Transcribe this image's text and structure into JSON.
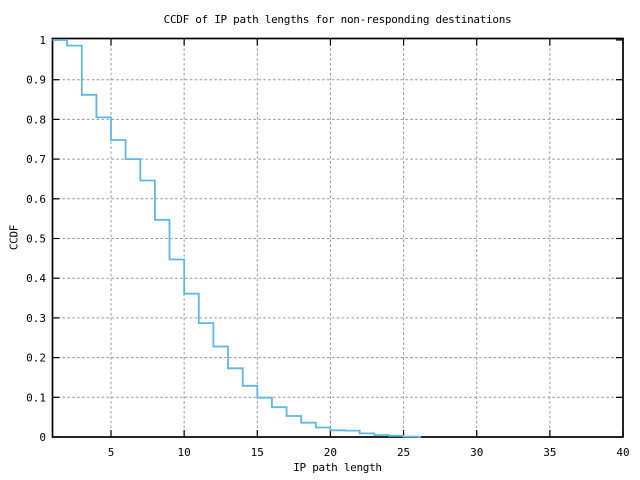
{
  "title": "CCDF of IP path lengths for non-responding destinations",
  "colors": {
    "line": "#5db8e6",
    "grid": "#9a9a9a",
    "axis": "#000000",
    "background": "#ffffff"
  },
  "chart_data": {
    "type": "line",
    "subtype": "step-staircase-ccdf",
    "title": "CCDF of IP path lengths for non-responding destinations",
    "xlabel": "IP path length",
    "ylabel": "CCDF",
    "xlim": [
      1,
      40
    ],
    "ylim": [
      0,
      1
    ],
    "grid": true,
    "legend": false,
    "xticks": [
      {
        "v": 5,
        "label": "5"
      },
      {
        "v": 10,
        "label": "10"
      },
      {
        "v": 15,
        "label": "15"
      },
      {
        "v": 20,
        "label": "20"
      },
      {
        "v": 25,
        "label": "25"
      },
      {
        "v": 30,
        "label": "30"
      },
      {
        "v": 35,
        "label": "35"
      },
      {
        "v": 40,
        "label": "40"
      }
    ],
    "yticks": [
      {
        "v": 0,
        "label": "0"
      },
      {
        "v": 0.1,
        "label": "0.1"
      },
      {
        "v": 0.2,
        "label": "0.2"
      },
      {
        "v": 0.3,
        "label": "0.3"
      },
      {
        "v": 0.4,
        "label": "0.4"
      },
      {
        "v": 0.5,
        "label": "0.5"
      },
      {
        "v": 0.6,
        "label": "0.6"
      },
      {
        "v": 0.7,
        "label": "0.7"
      },
      {
        "v": 0.8,
        "label": "0.8"
      },
      {
        "v": 0.9,
        "label": "0.9"
      },
      {
        "v": 1,
        "label": "1"
      }
    ],
    "series": [
      {
        "name": "ccdf",
        "steps": [
          [
            1,
            1.0
          ],
          [
            2,
            0.986
          ],
          [
            3,
            0.862
          ],
          [
            4,
            0.805
          ],
          [
            5,
            0.748
          ],
          [
            6,
            0.7
          ],
          [
            7,
            0.646
          ],
          [
            8,
            0.547
          ],
          [
            9,
            0.447
          ],
          [
            10,
            0.361
          ],
          [
            11,
            0.287
          ],
          [
            12,
            0.228
          ],
          [
            13,
            0.173
          ],
          [
            14,
            0.129
          ],
          [
            15,
            0.099
          ],
          [
            16,
            0.075
          ],
          [
            17,
            0.053
          ],
          [
            18,
            0.036
          ],
          [
            19,
            0.024
          ],
          [
            20,
            0.017
          ],
          [
            21,
            0.016
          ],
          [
            22,
            0.009
          ],
          [
            23,
            0.005
          ],
          [
            24,
            0.003
          ],
          [
            25,
            0.001
          ],
          [
            26,
            0.0
          ]
        ],
        "end_x": 26.2
      }
    ]
  }
}
